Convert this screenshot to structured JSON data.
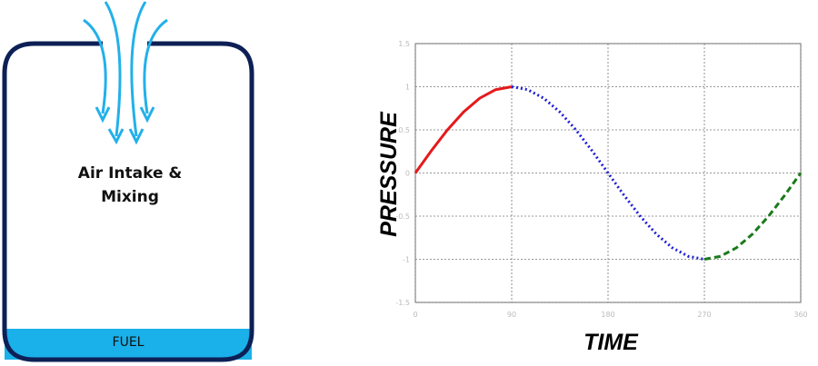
{
  "diagram": {
    "label": "Air Intake & Mixing",
    "fuel": "FUEL"
  },
  "chart_data": {
    "type": "line",
    "xlabel": "TIME",
    "ylabel": "PRESSURE",
    "xlim": [
      0,
      360
    ],
    "ylim": [
      -1.5,
      1.5
    ],
    "xticks": [
      0,
      90,
      180,
      270,
      360
    ],
    "yticks": [
      -1.5,
      -1,
      -0.5,
      0,
      0.5,
      1,
      1.5
    ],
    "grid": true,
    "series": [
      {
        "color": "#e41a1c",
        "style": "solid",
        "x": [
          0,
          15,
          30,
          45,
          60,
          75,
          90
        ],
        "values": [
          0,
          0.259,
          0.5,
          0.707,
          0.866,
          0.966,
          1
        ]
      },
      {
        "color": "#1f1fd6",
        "style": "dotted",
        "x": [
          90,
          105,
          120,
          135,
          150,
          165,
          180,
          195,
          210,
          225,
          240,
          255,
          270
        ],
        "values": [
          1,
          0.966,
          0.866,
          0.707,
          0.5,
          0.259,
          0,
          -0.259,
          -0.5,
          -0.707,
          -0.866,
          -0.966,
          -1
        ]
      },
      {
        "color": "#1a7a1a",
        "style": "dashed",
        "x": [
          270,
          285,
          300,
          315,
          330,
          345,
          360
        ],
        "values": [
          -1,
          -0.966,
          -0.866,
          -0.707,
          -0.5,
          -0.259,
          0
        ]
      }
    ]
  }
}
